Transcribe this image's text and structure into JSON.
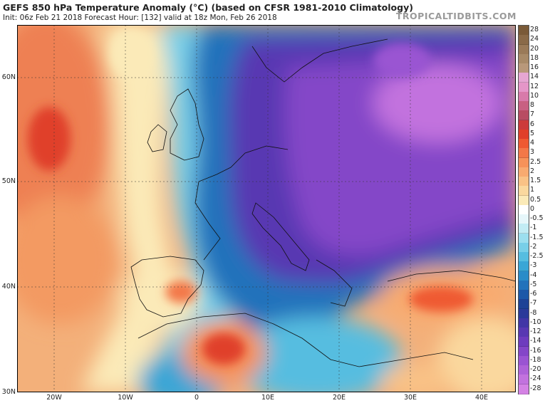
{
  "header": {
    "title": "GEFS 850 hPa Temperature Anomaly (°C) (based on CFSR 1981-2010 Climatology)",
    "subtitle": "Init: 06z Feb 21 2018   Forecast Hour: [132]   valid at 18z Mon, Feb 26 2018",
    "brand": "TROPICALTIDBITS.COM"
  },
  "axes": {
    "lat_labels": [
      "60N",
      "50N",
      "40N",
      "30N"
    ],
    "lon_labels": [
      "20W",
      "10W",
      "0",
      "10E",
      "20E",
      "30E",
      "40E"
    ]
  },
  "legend": {
    "ticks": [
      "28",
      "24",
      "20",
      "18",
      "16",
      "14",
      "12",
      "10",
      "8",
      "7",
      "6",
      "5",
      "4",
      "3",
      "2.5",
      "2",
      "1.5",
      "1",
      "0.5",
      "0",
      "-0.5",
      "-1",
      "-1.5",
      "-2",
      "-2.5",
      "-3",
      "-4",
      "-5",
      "-6",
      "-7",
      "-8",
      "-10",
      "-12",
      "-14",
      "-16",
      "-18",
      "-20",
      "-24",
      "-28"
    ],
    "colors": [
      "#7a5a38",
      "#8a6a48",
      "#9a7a58",
      "#a88a68",
      "#b8987a",
      "#e6a6d2",
      "#e596c8",
      "#d87aaa",
      "#c86082",
      "#b84c62",
      "#cc3a3a",
      "#e0402a",
      "#ef5a32",
      "#f37848",
      "#f6925a",
      "#f8aa70",
      "#f9c286",
      "#fad89e",
      "#fbeab8",
      "#ffffff",
      "#e6f6fa",
      "#c2ecf4",
      "#9cdfef",
      "#78cfe8",
      "#56bde0",
      "#3aa6d6",
      "#2a8cc8",
      "#2272bb",
      "#1c58a8",
      "#1d4296",
      "#2a3a9a",
      "#4136a6",
      "#5838b2",
      "#6e3cbe",
      "#8446c8",
      "#9a54d2",
      "#ae62d8",
      "#c272de",
      "#d482e4"
    ]
  },
  "map": {
    "region": "Europe / North Atlantic",
    "colors": {
      "warm_ocean": "#f0925c",
      "neutral": "#fbeab8",
      "cold_deep": "#1c58a8",
      "very_cold": "#8446c8",
      "extreme_cold": "#c272de"
    }
  }
}
